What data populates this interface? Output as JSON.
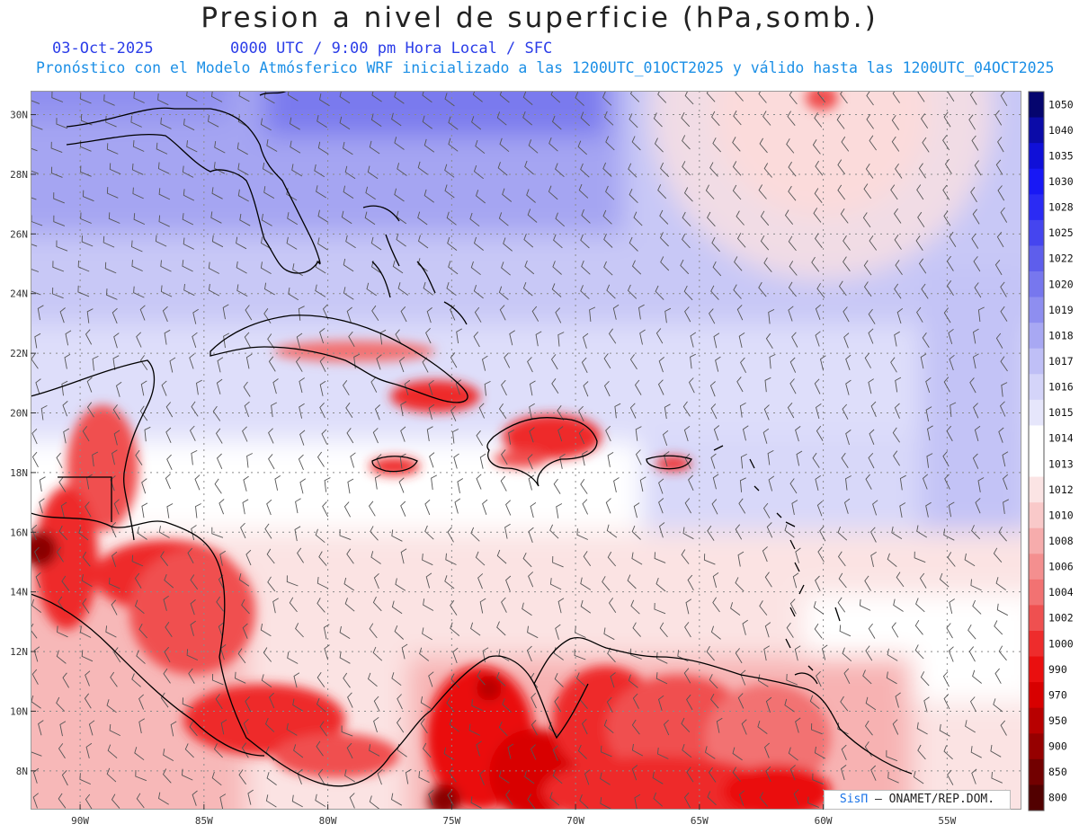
{
  "header": {
    "title": "Presion a nivel de superficie (hPa,somb.)",
    "date": "03-Oct-2025",
    "time_info": "0000 UTC / 9:00 pm Hora Local / SFC",
    "model_info": "Pronóstico con el Modelo Atmósferico WRF inicializado a las 1200UTC_01OCT2025 y válido hasta las  1200UTC_04OCT2025"
  },
  "map": {
    "lon_labels": [
      "90W",
      "85W",
      "80W",
      "75W",
      "70W",
      "65W",
      "60W",
      "55W"
    ],
    "lat_labels": [
      "30N",
      "28N",
      "26N",
      "24N",
      "22N",
      "20N",
      "18N",
      "16N",
      "14N",
      "12N",
      "10N",
      "8N"
    ],
    "lon_range": [
      -92,
      -52
    ],
    "lat_range": [
      6.7,
      30.8
    ]
  },
  "colorbar": {
    "levels": [
      "1050",
      "1040",
      "1035",
      "1030",
      "1028",
      "1025",
      "1022",
      "1020",
      "1019",
      "1018",
      "1017",
      "1016",
      "1015",
      "1014",
      "1013",
      "1012",
      "1010",
      "1008",
      "1006",
      "1004",
      "1002",
      "1000",
      "990",
      "970",
      "950",
      "900",
      "850",
      "800"
    ],
    "colors": [
      "#05056e",
      "#0b0ba8",
      "#1010d8",
      "#1818f5",
      "#2b2bf4",
      "#4545ef",
      "#5e5eec",
      "#7777ee",
      "#8e8ef0",
      "#a8a8f3",
      "#bfbff6",
      "#d4d4f9",
      "#e6e6fb",
      "#ffffff",
      "#ffffff",
      "#fbe4e4",
      "#f9c9c9",
      "#f6acac",
      "#f48f8f",
      "#f27272",
      "#ef5050",
      "#ee2c2c",
      "#ea0f0f",
      "#d80000",
      "#b80000",
      "#960000",
      "#720000",
      "#520000"
    ]
  },
  "credit": {
    "brand": "SisΠ",
    "text": "– ONAMET/REP.DOM."
  }
}
